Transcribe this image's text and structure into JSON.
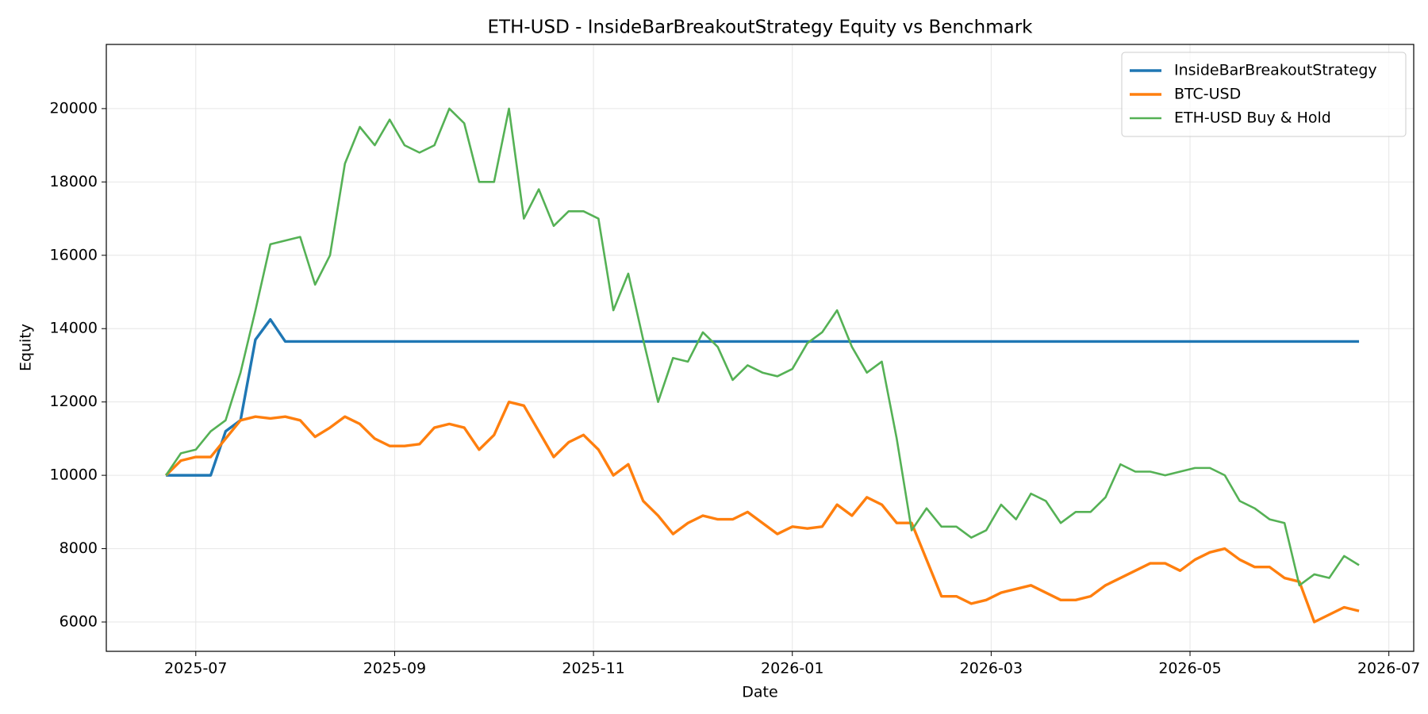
{
  "chart_data": {
    "type": "line",
    "title": "ETH-USD - InsideBarBreakoutStrategy Equity vs Benchmark",
    "xlabel": "Date",
    "ylabel": "Equity",
    "x": [
      5.7,
      5.85,
      6.0,
      6.15,
      6.3,
      6.45,
      6.6,
      6.75,
      6.9,
      7.05,
      7.2,
      7.35,
      7.5,
      7.65,
      7.8,
      7.95,
      8.1,
      8.25,
      8.4,
      8.55,
      8.7,
      8.85,
      9.0,
      9.15,
      9.3,
      9.45,
      9.6,
      9.75,
      9.9,
      10.05,
      10.2,
      10.35,
      10.5,
      10.65,
      10.8,
      10.95,
      11.1,
      11.25,
      11.4,
      11.55,
      11.7,
      11.85,
      12.0,
      12.15,
      12.3,
      12.45,
      12.6,
      12.75,
      12.9,
      13.05,
      13.2,
      13.35,
      13.5,
      13.65,
      13.8,
      13.95,
      14.1,
      14.25,
      14.4,
      14.55,
      14.7,
      14.85,
      15.0,
      15.15,
      15.3,
      15.45,
      15.6,
      15.75,
      15.9,
      16.05,
      16.2,
      16.35,
      16.5,
      16.65,
      16.8,
      16.95,
      17.1,
      17.25,
      17.4,
      17.55,
      17.7
    ],
    "series": [
      {
        "name": "InsideBarBreakoutStrategy",
        "color": "#1f77b4",
        "values": [
          10000,
          10000,
          10000,
          10000,
          11200,
          11500,
          13700,
          14250,
          13650,
          13650,
          13650,
          13650,
          13650,
          13650,
          13650,
          13650,
          13650,
          13650,
          13650,
          13650,
          13650,
          13650,
          13650,
          13650,
          13650,
          13650,
          13650,
          13650,
          13650,
          13650,
          13650,
          13650,
          13650,
          13650,
          13650,
          13650,
          13650,
          13650,
          13650,
          13650,
          13650,
          13650,
          13650,
          13650,
          13650,
          13650,
          13650,
          13650,
          13650,
          13650,
          13650,
          13650,
          13650,
          13650,
          13650,
          13650,
          13650,
          13650,
          13650,
          13650,
          13650,
          13650,
          13650,
          13650,
          13650,
          13650,
          13650,
          13650,
          13650,
          13650,
          13650,
          13650,
          13650,
          13650,
          13650,
          13650,
          13650,
          13650,
          13650,
          13650,
          13650
        ]
      },
      {
        "name": "BTC-USD",
        "color": "#ff7f0e",
        "values": [
          10000,
          10400,
          10500,
          10500,
          11000,
          11500,
          11600,
          11550,
          11600,
          11500,
          11050,
          11300,
          11600,
          11400,
          11000,
          10800,
          10800,
          10850,
          11300,
          11400,
          11300,
          10700,
          11100,
          12000,
          11900,
          11200,
          10500,
          10900,
          11100,
          10700,
          10000,
          10300,
          9300,
          8900,
          8400,
          8700,
          8900,
          8800,
          8800,
          9000,
          8700,
          8400,
          8600,
          8550,
          8600,
          9200,
          8900,
          9400,
          9200,
          8700,
          8700,
          7700,
          6700,
          6700,
          6500,
          6600,
          6800,
          6900,
          7000,
          6800,
          6600,
          6600,
          6700,
          7000,
          7200,
          7400,
          7600,
          7600,
          7400,
          7700,
          7900,
          8000,
          7700,
          7500,
          7500,
          7200,
          7100,
          6000,
          6200,
          6400,
          6300
        ]
      },
      {
        "name": "ETH-USD Buy & Hold",
        "color": "#55b155",
        "values": [
          10000,
          10600,
          10700,
          11200,
          11500,
          12800,
          14500,
          16300,
          16400,
          16500,
          15200,
          16000,
          18500,
          19500,
          19000,
          19700,
          19000,
          18800,
          19000,
          20000,
          19600,
          18000,
          18000,
          20000,
          17000,
          17800,
          16800,
          17200,
          17200,
          17000,
          14500,
          15500,
          13700,
          12000,
          13200,
          13100,
          13900,
          13500,
          12600,
          13000,
          12800,
          12700,
          12900,
          13600,
          13900,
          14500,
          13500,
          12800,
          13100,
          11000,
          8500,
          9100,
          8600,
          8600,
          8300,
          8500,
          9200,
          8800,
          9500,
          9300,
          8700,
          9000,
          9000,
          9400,
          10300,
          10100,
          10100,
          10000,
          10100,
          10200,
          10200,
          10000,
          9300,
          9100,
          8800,
          8700,
          7000,
          7300,
          7200,
          7800,
          7550
        ]
      }
    ],
    "xlim": [
      5.1,
      18.25
    ],
    "xticks": [
      {
        "value": 6,
        "label": "2025-07"
      },
      {
        "value": 8,
        "label": "2025-09"
      },
      {
        "value": 10,
        "label": "2025-11"
      },
      {
        "value": 12,
        "label": "2026-01"
      },
      {
        "value": 14,
        "label": "2026-03"
      },
      {
        "value": 16,
        "label": "2026-05"
      },
      {
        "value": 18,
        "label": "2026-07"
      }
    ],
    "ylim": [
      5200,
      21750
    ],
    "yticks": [
      6000,
      8000,
      10000,
      12000,
      14000,
      16000,
      18000,
      20000
    ],
    "grid": true,
    "legend": "upper right"
  }
}
